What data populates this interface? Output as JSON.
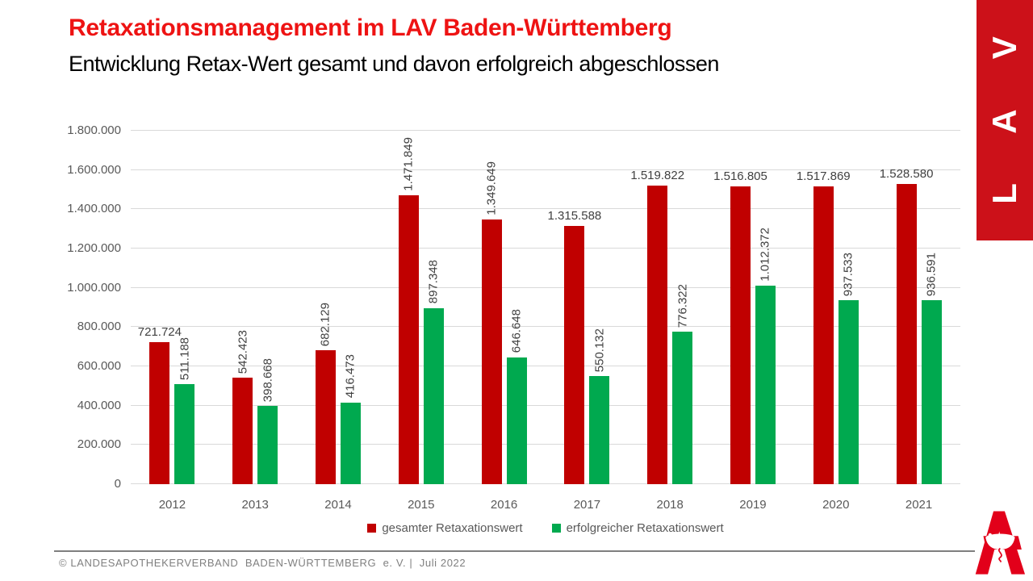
{
  "page": {
    "title": "Retaxationsmanagement im LAV Baden-Württemberg",
    "subtitle": "Entwicklung Retax-Wert gesamt und davon erfolgreich abgeschlossen",
    "banner_text": "L A V",
    "footer": "© LANDESAPOTHEKERVERBAND  BADEN-WÜRTTEMBERG  e. V. |  Juli 2022"
  },
  "colors": {
    "title_red": "#ee1313",
    "banner_red": "#cc1119",
    "bar_red": "#c00000",
    "bar_green": "#00a94f",
    "grid": "#d9d9d9",
    "axis_text": "#595959",
    "label_text": "#404040",
    "footer_text": "#808080",
    "logo_red": "#e2001a"
  },
  "chart_data": {
    "type": "bar",
    "title": "Entwicklung Retax-Wert gesamt und davon erfolgreich abgeschlossen",
    "categories": [
      "2012",
      "2013",
      "2014",
      "2015",
      "2016",
      "2017",
      "2018",
      "2019",
      "2020",
      "2021"
    ],
    "series": [
      {
        "name": "gesamter Retaxationswert",
        "color": "#c00000",
        "values": [
          721724,
          542423,
          682129,
          1471849,
          1349649,
          1315588,
          1519822,
          1516805,
          1517869,
          1528580
        ],
        "labels": [
          "721.724",
          "542.423",
          "682.129",
          "1.471.849",
          "1.349.649",
          "1.315.588",
          "1.519.822",
          "1.516.805",
          "1.517.869",
          "1.528.580"
        ],
        "label_rotated": [
          false,
          true,
          true,
          true,
          true,
          false,
          false,
          false,
          false,
          false
        ]
      },
      {
        "name": "erfolgreicher Retaxationswert",
        "color": "#00a94f",
        "values": [
          511188,
          398668,
          416473,
          897348,
          646648,
          550132,
          776322,
          1012372,
          937533,
          936591
        ],
        "labels": [
          "511.188",
          "398.668",
          "416.473",
          "897.348",
          "646.648",
          "550.132",
          "776.322",
          "1.012.372",
          "937.533",
          "936.591"
        ],
        "label_rotated": [
          true,
          true,
          true,
          true,
          true,
          true,
          true,
          true,
          true,
          true
        ]
      }
    ],
    "xlabel": "",
    "ylabel": "",
    "ylim": [
      0,
      1800000
    ],
    "ytick_interval": 200000,
    "ytick_labels": [
      "1.800.000",
      "1.600.000",
      "1.400.000",
      "1.200.000",
      "1.000.000",
      "800.000",
      "600.000",
      "400.000",
      "200.000",
      "0"
    ],
    "grid": true,
    "legend_position": "bottom"
  }
}
